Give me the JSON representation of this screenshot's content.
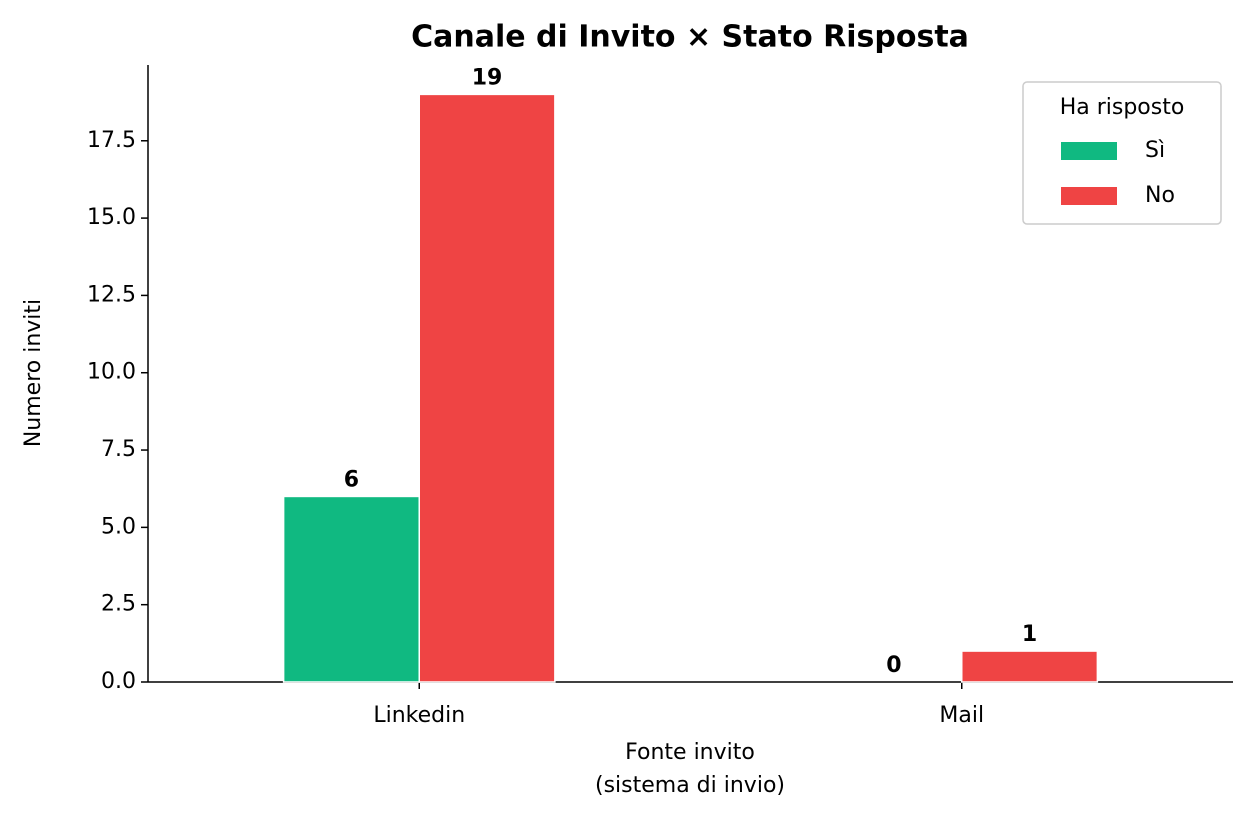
{
  "chart_data": {
    "type": "bar",
    "title": "Canale di Invito × Stato Risposta",
    "xlabel": "Fonte invito\n(sistema di invio)",
    "ylabel": "Numero inviti",
    "categories": [
      "Linkedin",
      "Mail"
    ],
    "series": [
      {
        "name": "Sì",
        "color": "#10b981",
        "values": [
          6,
          0
        ]
      },
      {
        "name": "No",
        "color": "#ef4444",
        "values": [
          19,
          1
        ]
      }
    ],
    "legend_title": "Ha risposto",
    "legend": "upper right",
    "ylim": [
      0,
      19.95
    ],
    "yticks": [
      {
        "value": 0,
        "label": "0.0"
      },
      {
        "value": 2.5,
        "label": "2.5"
      },
      {
        "value": 5,
        "label": "5.0"
      },
      {
        "value": 7.5,
        "label": "7.5"
      },
      {
        "value": 10,
        "label": "10.0"
      },
      {
        "value": 12.5,
        "label": "12.5"
      },
      {
        "value": 15,
        "label": "15.0"
      },
      {
        "value": 17.5,
        "label": "17.5"
      }
    ],
    "grid": false
  }
}
